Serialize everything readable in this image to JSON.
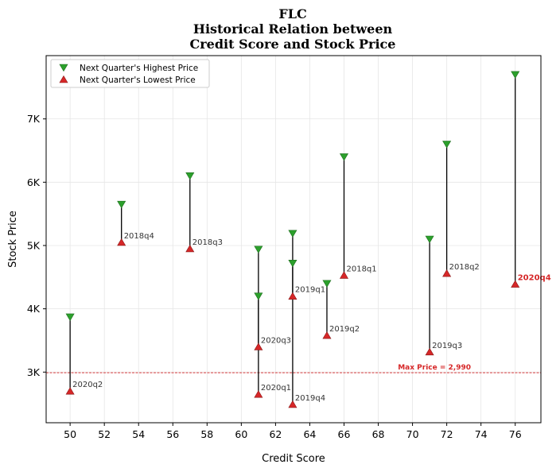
{
  "chart_data": {
    "type": "scatter",
    "title": [
      "FLC",
      "Historical Relation between",
      "Credit Score and Stock Price"
    ],
    "xlabel": "Credit Score",
    "ylabel": "Stock Price",
    "xlim": [
      48.6,
      77.5
    ],
    "ylim": [
      2200,
      8000
    ],
    "xticks": [
      50,
      52,
      54,
      56,
      58,
      60,
      62,
      64,
      66,
      68,
      70,
      72,
      74,
      76
    ],
    "yticks": [
      {
        "value": 3000,
        "label": "3K"
      },
      {
        "value": 4000,
        "label": "4K"
      },
      {
        "value": 5000,
        "label": "5K"
      },
      {
        "value": 6000,
        "label": "6K"
      },
      {
        "value": 7000,
        "label": "7K"
      }
    ],
    "grid": true,
    "legend": {
      "position": "top-left",
      "entries": [
        {
          "name": "Next Quarter's Highest Price",
          "marker": "triangle-down",
          "color": "#2ca02c"
        },
        {
          "name": "Next Quarter's Lowest Price",
          "marker": "triangle-up",
          "color": "#d62728"
        }
      ]
    },
    "reference_line": {
      "y": 2990,
      "label": "Max Price = 2,990",
      "color": "#d62728"
    },
    "points": [
      {
        "quarter": "2020q2",
        "credit_score": 50,
        "high": 3870,
        "low": 2700
      },
      {
        "quarter": "2018q4",
        "credit_score": 53,
        "high": 5650,
        "low": 5050
      },
      {
        "quarter": "2018q3",
        "credit_score": 57,
        "high": 6100,
        "low": 4950
      },
      {
        "quarter": "2020q3",
        "credit_score": 61,
        "high": 4200,
        "low": 3400
      },
      {
        "quarter": "2020q1",
        "credit_score": 61,
        "high": 4940,
        "low": 2650
      },
      {
        "quarter": "2019q1",
        "credit_score": 63,
        "high": 4720,
        "low": 4200
      },
      {
        "quarter": "2019q4",
        "credit_score": 63,
        "high": 5190,
        "low": 2490
      },
      {
        "quarter": "2019q2",
        "credit_score": 65,
        "high": 4400,
        "low": 3580
      },
      {
        "quarter": "2018q1",
        "credit_score": 66,
        "high": 6400,
        "low": 4530
      },
      {
        "quarter": "2019q3",
        "credit_score": 71,
        "high": 5100,
        "low": 3320
      },
      {
        "quarter": "2018q2",
        "credit_score": 72,
        "high": 6600,
        "low": 4560
      },
      {
        "quarter": "2020q4",
        "credit_score": 76,
        "high": 7700,
        "low": 4390,
        "highlight": true
      }
    ],
    "colors": {
      "high": "#2ca02c",
      "low": "#d62728",
      "stem": "#000000",
      "highlight_label": "#d62728"
    }
  }
}
